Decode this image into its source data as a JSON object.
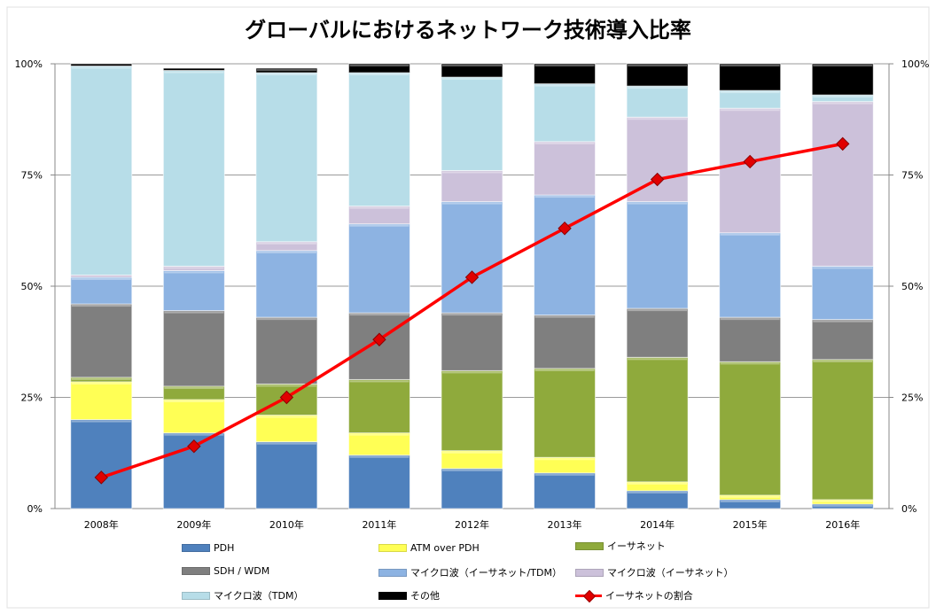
{
  "chart_data": {
    "type": "bar",
    "stacked": true,
    "title": "グローバルにおけるネットワーク技術導入比率",
    "categories": [
      "2008年",
      "2009年",
      "2010年",
      "2011年",
      "2012年",
      "2013年",
      "2014年",
      "2015年",
      "2016年"
    ],
    "y_ticks_left": [
      "0%",
      "25%",
      "50%",
      "75%",
      "100%"
    ],
    "y_ticks_right": [
      "0%",
      "25%",
      "50%",
      "75%",
      "100%"
    ],
    "ylim": [
      0,
      100
    ],
    "grid": true,
    "legend_position": "bottom",
    "series": [
      {
        "name": "PDH",
        "color": "#4f81bd",
        "values": [
          20,
          17,
          15,
          12,
          9,
          8,
          4,
          2,
          1
        ]
      },
      {
        "name": "ATM over PDH",
        "color": "#ffff55",
        "values": [
          8.5,
          7.5,
          6,
          5,
          4,
          3.5,
          2,
          1,
          1
        ]
      },
      {
        "name": "イーサネット",
        "color": "#8faa3c",
        "values": [
          1,
          3,
          7,
          12,
          18,
          20,
          28,
          30,
          31.5
        ]
      },
      {
        "name": "SDH / WDM",
        "color": "#7f7f7f",
        "values": [
          16.5,
          17,
          15,
          15,
          13,
          12,
          11,
          10,
          9
        ]
      },
      {
        "name": "マイクロ波（イーサネット/TDM）",
        "color": "#8db3e2",
        "values": [
          6,
          9,
          15,
          20,
          25,
          27,
          24,
          19,
          12
        ]
      },
      {
        "name": "マイクロ波（イーサネット）",
        "color": "#ccc1da",
        "values": [
          0.5,
          1,
          2,
          4,
          7,
          12,
          19,
          28,
          37
        ]
      },
      {
        "name": "マイクロ波（TDM）",
        "color": "#b7dde8",
        "values": [
          47,
          44,
          38,
          30,
          21,
          13,
          7,
          4,
          1.5
        ]
      },
      {
        "name": "その他",
        "color": "#000000",
        "values": [
          0.5,
          0.5,
          1,
          2,
          3,
          4.5,
          5,
          6,
          7
        ]
      }
    ],
    "line_series": {
      "name": "イーサネットの割合",
      "color": "#ff0000",
      "values": [
        7,
        14,
        25,
        38,
        52,
        63,
        74,
        78,
        82
      ]
    }
  },
  "legend": {
    "rows": [
      [
        "PDH",
        "ATM over PDH",
        "イーサネット"
      ],
      [
        "SDH / WDM",
        "マイクロ波（イーサネット/TDM）",
        "マイクロ波（イーサネット）"
      ],
      [
        "マイクロ波（TDM）",
        "その他",
        "イーサネットの割合"
      ]
    ]
  }
}
